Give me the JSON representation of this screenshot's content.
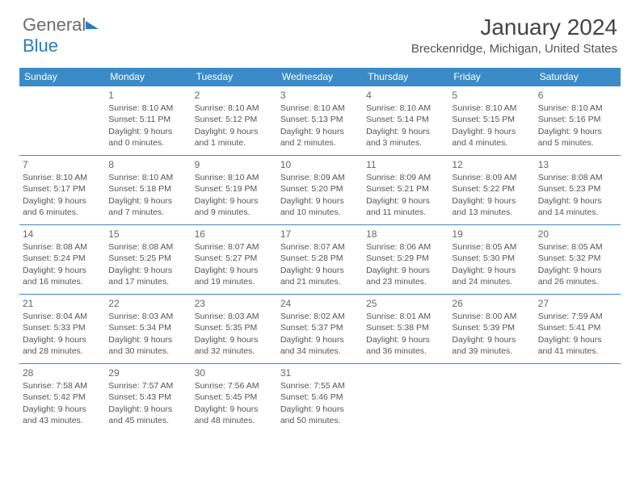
{
  "logo": {
    "gray": "General",
    "blue": "Blue"
  },
  "title": "January 2024",
  "location": "Breckenridge, Michigan, United States",
  "colors": {
    "header_bg": "#3b8bc8",
    "header_text": "#ffffff",
    "row_border": "#3b8bc8",
    "body_text": "#555555",
    "logo_gray": "#6b6b6b",
    "logo_blue": "#2b7bbf"
  },
  "weekdays": [
    "Sunday",
    "Monday",
    "Tuesday",
    "Wednesday",
    "Thursday",
    "Friday",
    "Saturday"
  ],
  "first_weekday_index": 1,
  "days": [
    {
      "n": 1,
      "sr": "8:10 AM",
      "ss": "5:11 PM",
      "dl": "9 hours and 0 minutes."
    },
    {
      "n": 2,
      "sr": "8:10 AM",
      "ss": "5:12 PM",
      "dl": "9 hours and 1 minute."
    },
    {
      "n": 3,
      "sr": "8:10 AM",
      "ss": "5:13 PM",
      "dl": "9 hours and 2 minutes."
    },
    {
      "n": 4,
      "sr": "8:10 AM",
      "ss": "5:14 PM",
      "dl": "9 hours and 3 minutes."
    },
    {
      "n": 5,
      "sr": "8:10 AM",
      "ss": "5:15 PM",
      "dl": "9 hours and 4 minutes."
    },
    {
      "n": 6,
      "sr": "8:10 AM",
      "ss": "5:16 PM",
      "dl": "9 hours and 5 minutes."
    },
    {
      "n": 7,
      "sr": "8:10 AM",
      "ss": "5:17 PM",
      "dl": "9 hours and 6 minutes."
    },
    {
      "n": 8,
      "sr": "8:10 AM",
      "ss": "5:18 PM",
      "dl": "9 hours and 7 minutes."
    },
    {
      "n": 9,
      "sr": "8:10 AM",
      "ss": "5:19 PM",
      "dl": "9 hours and 9 minutes."
    },
    {
      "n": 10,
      "sr": "8:09 AM",
      "ss": "5:20 PM",
      "dl": "9 hours and 10 minutes."
    },
    {
      "n": 11,
      "sr": "8:09 AM",
      "ss": "5:21 PM",
      "dl": "9 hours and 11 minutes."
    },
    {
      "n": 12,
      "sr": "8:09 AM",
      "ss": "5:22 PM",
      "dl": "9 hours and 13 minutes."
    },
    {
      "n": 13,
      "sr": "8:08 AM",
      "ss": "5:23 PM",
      "dl": "9 hours and 14 minutes."
    },
    {
      "n": 14,
      "sr": "8:08 AM",
      "ss": "5:24 PM",
      "dl": "9 hours and 16 minutes."
    },
    {
      "n": 15,
      "sr": "8:08 AM",
      "ss": "5:25 PM",
      "dl": "9 hours and 17 minutes."
    },
    {
      "n": 16,
      "sr": "8:07 AM",
      "ss": "5:27 PM",
      "dl": "9 hours and 19 minutes."
    },
    {
      "n": 17,
      "sr": "8:07 AM",
      "ss": "5:28 PM",
      "dl": "9 hours and 21 minutes."
    },
    {
      "n": 18,
      "sr": "8:06 AM",
      "ss": "5:29 PM",
      "dl": "9 hours and 23 minutes."
    },
    {
      "n": 19,
      "sr": "8:05 AM",
      "ss": "5:30 PM",
      "dl": "9 hours and 24 minutes."
    },
    {
      "n": 20,
      "sr": "8:05 AM",
      "ss": "5:32 PM",
      "dl": "9 hours and 26 minutes."
    },
    {
      "n": 21,
      "sr": "8:04 AM",
      "ss": "5:33 PM",
      "dl": "9 hours and 28 minutes."
    },
    {
      "n": 22,
      "sr": "8:03 AM",
      "ss": "5:34 PM",
      "dl": "9 hours and 30 minutes."
    },
    {
      "n": 23,
      "sr": "8:03 AM",
      "ss": "5:35 PM",
      "dl": "9 hours and 32 minutes."
    },
    {
      "n": 24,
      "sr": "8:02 AM",
      "ss": "5:37 PM",
      "dl": "9 hours and 34 minutes."
    },
    {
      "n": 25,
      "sr": "8:01 AM",
      "ss": "5:38 PM",
      "dl": "9 hours and 36 minutes."
    },
    {
      "n": 26,
      "sr": "8:00 AM",
      "ss": "5:39 PM",
      "dl": "9 hours and 39 minutes."
    },
    {
      "n": 27,
      "sr": "7:59 AM",
      "ss": "5:41 PM",
      "dl": "9 hours and 41 minutes."
    },
    {
      "n": 28,
      "sr": "7:58 AM",
      "ss": "5:42 PM",
      "dl": "9 hours and 43 minutes."
    },
    {
      "n": 29,
      "sr": "7:57 AM",
      "ss": "5:43 PM",
      "dl": "9 hours and 45 minutes."
    },
    {
      "n": 30,
      "sr": "7:56 AM",
      "ss": "5:45 PM",
      "dl": "9 hours and 48 minutes."
    },
    {
      "n": 31,
      "sr": "7:55 AM",
      "ss": "5:46 PM",
      "dl": "9 hours and 50 minutes."
    }
  ],
  "labels": {
    "sunrise": "Sunrise:",
    "sunset": "Sunset:",
    "daylight": "Daylight:"
  }
}
